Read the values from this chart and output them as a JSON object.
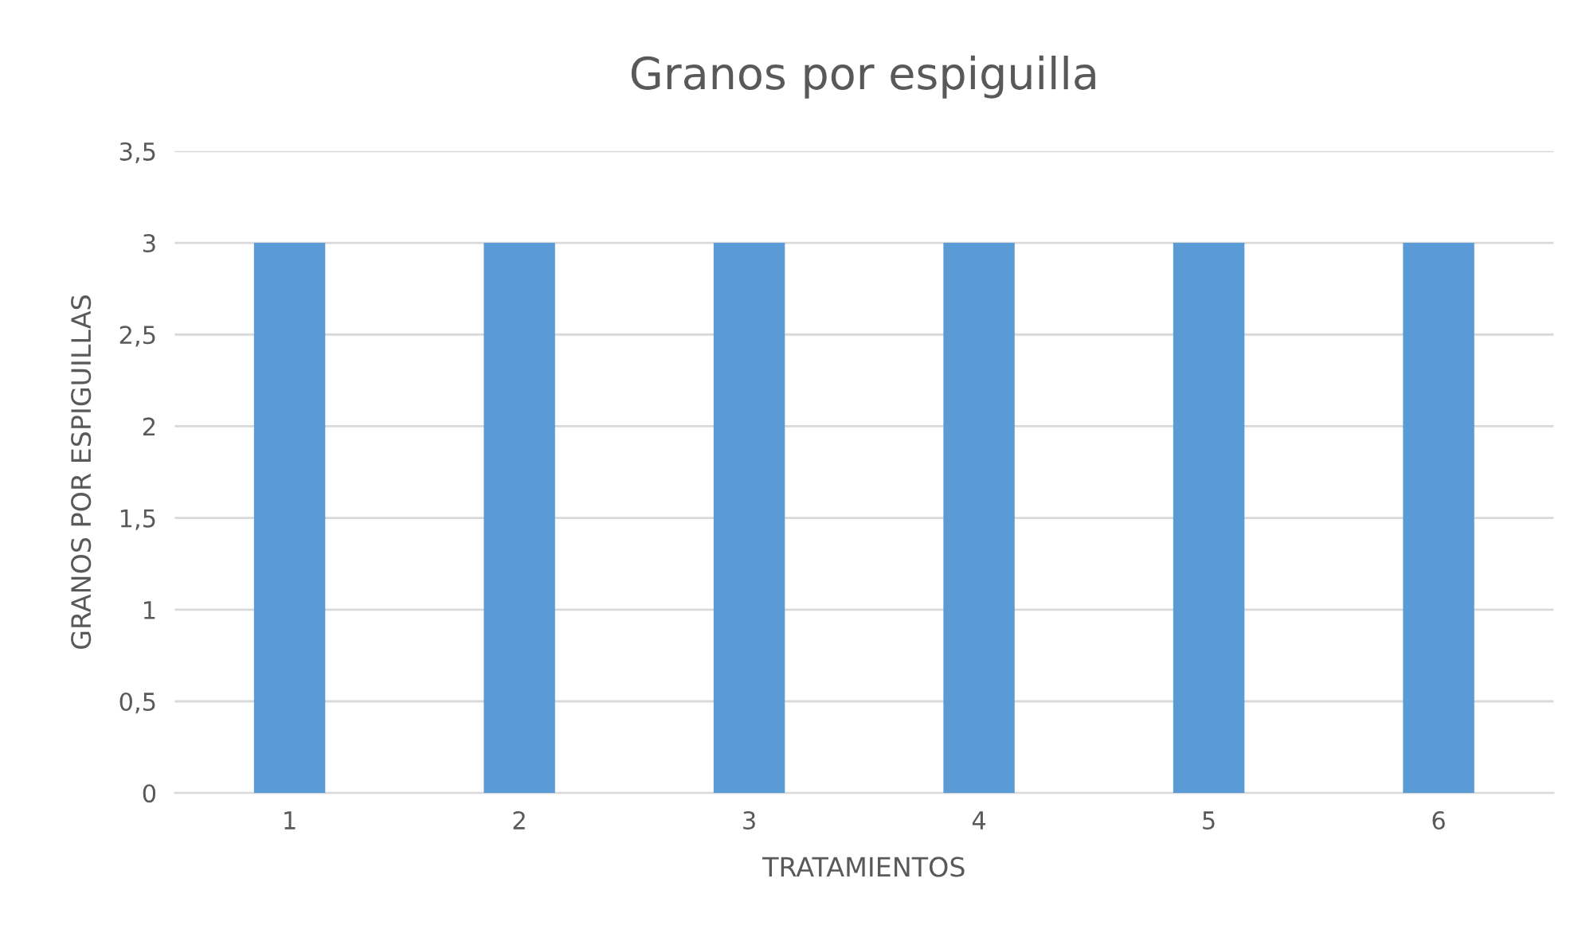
{
  "chart_data": {
    "type": "bar",
    "title": "Granos por espiguilla",
    "xlabel": "TRATAMIENTOS",
    "ylabel": "GRANOS POR ESPIGUILLAS",
    "categories": [
      "1",
      "2",
      "3",
      "4",
      "5",
      "6"
    ],
    "values": [
      3,
      3,
      3,
      3,
      3,
      3
    ],
    "color": "#5b9bd5",
    "ylim": [
      0,
      3.5
    ],
    "yticks": [
      0,
      {
        "value": 0.5,
        "label": "0,5"
      },
      1,
      {
        "value": 1.5,
        "label": "1,5"
      },
      2,
      {
        "value": 2.5,
        "label": "2,5"
      },
      3,
      {
        "value": 3.5,
        "label": "3,5"
      }
    ],
    "grid": "y"
  }
}
